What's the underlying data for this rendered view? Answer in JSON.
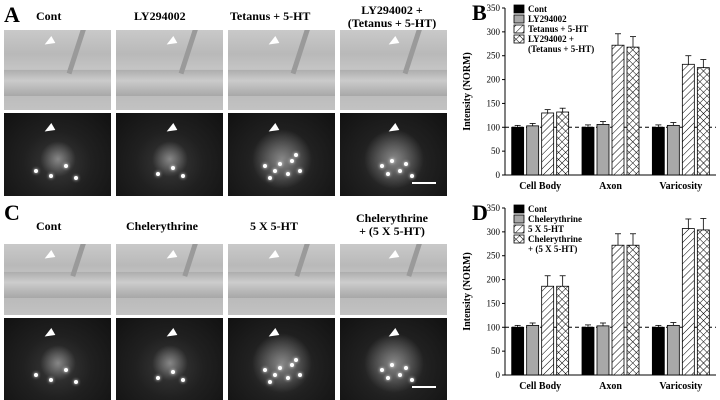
{
  "panels": {
    "A": {
      "letter": "A",
      "labels": [
        "Cont",
        "LY294002",
        "Tetanus + 5-HT",
        "LY294002 +",
        "(Tetanus + 5-HT)"
      ]
    },
    "B": {
      "letter": "B"
    },
    "C": {
      "letter": "C",
      "labels": [
        "Cont",
        "Chelerythrine",
        "5 X 5-HT",
        "Chelerythrine",
        "+ (5 X 5-HT)"
      ]
    },
    "D": {
      "letter": "D"
    }
  },
  "chart_data": [
    {
      "type": "bar",
      "panel": "B",
      "ylabel": "Intensity (NORM)",
      "ylim": [
        0,
        350
      ],
      "yticks": [
        "0",
        "50",
        "100",
        "150",
        "200",
        "250",
        "300",
        "350"
      ],
      "baseline": 100,
      "categories": [
        "Cell Body",
        "Axon",
        "Varicosity"
      ],
      "legend_position": "top-left",
      "series": [
        {
          "name": "Cont",
          "fill": "black",
          "values": [
            100,
            100,
            100
          ],
          "errors": [
            4,
            5,
            5
          ]
        },
        {
          "name": "LY294002",
          "fill": "gray",
          "values": [
            103,
            106,
            104
          ],
          "errors": [
            5,
            6,
            6
          ]
        },
        {
          "name": "Tetanus + 5-HT",
          "fill": "hatch",
          "values": [
            130,
            272,
            232
          ],
          "errors": [
            7,
            24,
            18
          ]
        },
        {
          "name": "LY294002 +",
          "name2": "(Tetanus + 5-HT)",
          "fill": "crosshatch",
          "values": [
            132,
            268,
            225
          ],
          "errors": [
            8,
            22,
            17
          ]
        }
      ]
    },
    {
      "type": "bar",
      "panel": "D",
      "ylabel": "Intensity (NORM)",
      "ylim": [
        0,
        350
      ],
      "yticks": [
        "0",
        "50",
        "100",
        "150",
        "200",
        "250",
        "300",
        "350"
      ],
      "baseline": 100,
      "categories": [
        "Cell Body",
        "Axon",
        "Varicosity"
      ],
      "legend_position": "top-left",
      "series": [
        {
          "name": "Cont",
          "fill": "black",
          "values": [
            100,
            100,
            100
          ],
          "errors": [
            4,
            5,
            4
          ]
        },
        {
          "name": "Chelerythrine",
          "fill": "gray",
          "values": [
            104,
            103,
            104
          ],
          "errors": [
            5,
            6,
            6
          ]
        },
        {
          "name": "5 X 5-HT",
          "fill": "hatch",
          "values": [
            186,
            272,
            307
          ],
          "errors": [
            22,
            24,
            20
          ]
        },
        {
          "name": "Chelerythrine",
          "name2": "+ (5 X 5-HT)",
          "fill": "crosshatch",
          "values": [
            186,
            272,
            304
          ],
          "errors": [
            22,
            24,
            24
          ]
        }
      ]
    }
  ]
}
